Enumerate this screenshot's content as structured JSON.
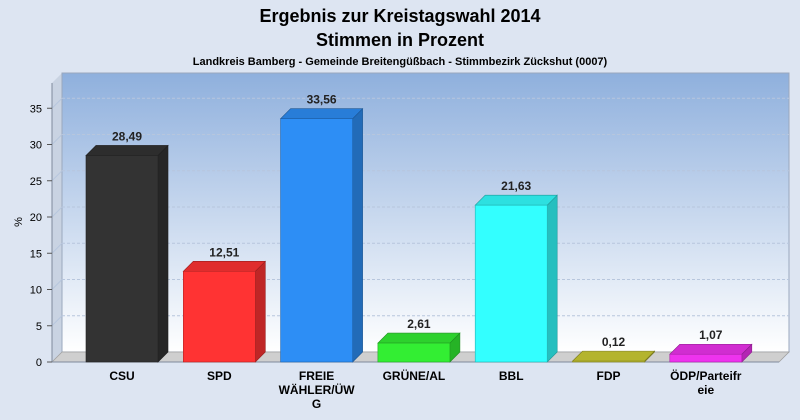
{
  "chart_data": {
    "type": "bar",
    "title": "Ergebnis zur Kreistagswahl 2014",
    "title2": "Stimmen in Prozent",
    "subtitle": "Landkreis Bamberg - Gemeinde Breitengüßbach - Stimmbezirk Zückshut (0007)",
    "ylabel": "%",
    "xlabel": "",
    "ylim": [
      0,
      38
    ],
    "yticks": [
      0,
      5,
      10,
      15,
      20,
      25,
      30,
      35
    ],
    "grid": true,
    "categories": [
      [
        "CSU"
      ],
      [
        "SPD"
      ],
      [
        "FREIE",
        "WÄHLER/ÜW",
        "G"
      ],
      [
        "GRÜNE/AL"
      ],
      [
        "BBL"
      ],
      [
        "FDP"
      ],
      [
        "ÖDP/Parteifr",
        "eie"
      ]
    ],
    "values": [
      28.49,
      12.51,
      33.56,
      2.61,
      21.63,
      0.12,
      1.07
    ],
    "value_labels": [
      "28,49",
      "12,51",
      "33,56",
      "2,61",
      "21,63",
      "0,12",
      "1,07"
    ],
    "colors": [
      "#333333",
      "#ff3333",
      "#2d8ef5",
      "#33ee33",
      "#33ffff",
      "#cccc33",
      "#ee33ee"
    ]
  }
}
